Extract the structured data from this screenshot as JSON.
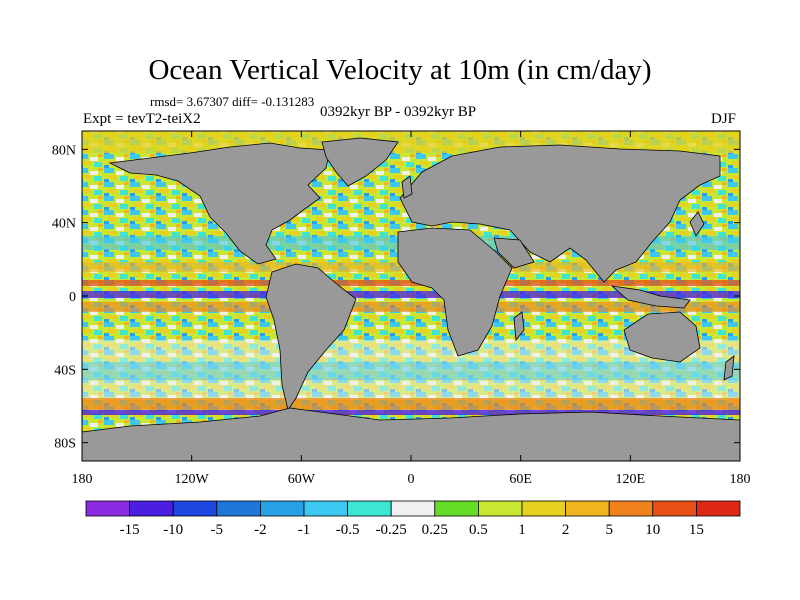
{
  "title": "Ocean Vertical Velocity at 10m (in cm/day)",
  "stats": "rmsd= 3.67307  diff= -0.131283",
  "experiment": "Expt = tevT2-teiX2",
  "period": "0392kyr BP - 0392kyr BP",
  "season": "DJF",
  "map": {
    "projection": "cylindrical-equidistant",
    "lon_range": [
      -180,
      180
    ],
    "lat_range": [
      -90,
      90
    ],
    "land_color": "#999999",
    "lat_ticks": [
      {
        "lat": 80,
        "label": "80N"
      },
      {
        "lat": 40,
        "label": "40N"
      },
      {
        "lat": 0,
        "label": "0"
      },
      {
        "lat": -40,
        "label": "40S"
      },
      {
        "lat": -80,
        "label": "80S"
      }
    ],
    "lon_ticks": [
      {
        "lon": -180,
        "label": "180"
      },
      {
        "lon": -120,
        "label": "120W"
      },
      {
        "lon": -60,
        "label": "60W"
      },
      {
        "lon": 0,
        "label": "0"
      },
      {
        "lon": 60,
        "label": "60E"
      },
      {
        "lon": 120,
        "label": "120E"
      },
      {
        "lon": 180,
        "label": "180"
      }
    ]
  },
  "colorbar": {
    "levels": [
      "-15",
      "-10",
      "-5",
      "-2",
      "-1",
      "-0.5",
      "-0.25",
      "0.25",
      "0.5",
      "1",
      "2",
      "5",
      "10",
      "15"
    ],
    "colors": [
      "#8a2be2",
      "#4b1ee0",
      "#1e46e0",
      "#1e78dc",
      "#28a0e6",
      "#3cc8f0",
      "#3ce6d2",
      "#f0f0f0",
      "#64dc28",
      "#c8e632",
      "#e6d21e",
      "#f0b41e",
      "#f0821e",
      "#e65014",
      "#dc2814"
    ]
  }
}
